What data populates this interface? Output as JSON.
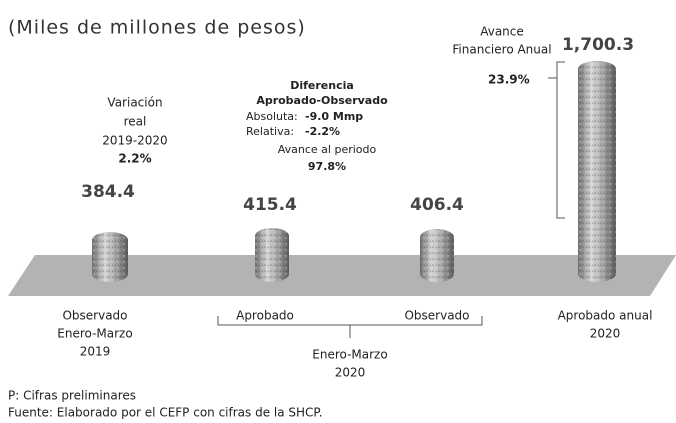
{
  "chart_data": {
    "type": "bar",
    "title": "(Miles de millones de pesos)",
    "categories": [
      [
        "Observado",
        "Enero-Marzo",
        "2019"
      ],
      [
        "Aprobado"
      ],
      [
        "Observado"
      ],
      [
        "Aprobado anual",
        "2020"
      ]
    ],
    "group_label": [
      "Enero-Marzo",
      "2020"
    ],
    "values": [
      384.4,
      415.4,
      406.4,
      1700.3
    ],
    "value_labels": [
      "384.4",
      "415.4",
      "406.4",
      "1,700.3"
    ],
    "color": "#9a9a9a",
    "annotations": {
      "variation": [
        "Variación",
        "real",
        "2019-2020",
        "2.2%"
      ],
      "difference": [
        "Diferencia",
        "Aprobado-Observado",
        "Absoluta:",
        "-9.0 Mmp",
        "Relativa:",
        "-2.2%",
        "Avance al periodo",
        "97.8%"
      ],
      "advance": [
        "Avance",
        "Financiero Anual",
        "23.9%"
      ]
    },
    "notes": [
      "P: Cifras preliminares",
      "Fuente: Elaborado por el CEFP con cifras de la SHCP."
    ]
  }
}
